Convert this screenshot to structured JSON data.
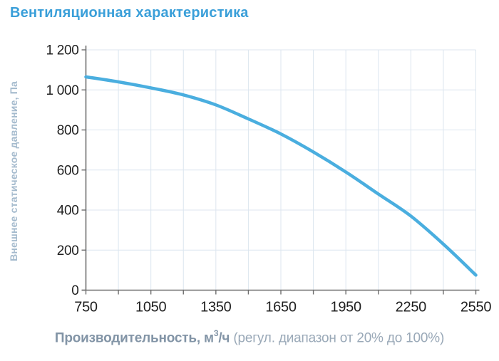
{
  "page": {
    "title": "Вентиляционная характеристика"
  },
  "colors": {
    "title": "#3A9FD9",
    "curve": "#4AAEDF",
    "grid": "#DCE6EF",
    "axis": "#6F6F6F",
    "tick_text": "#1F1F1F",
    "ylabel_text": "#A4BACD",
    "xlabel_bold": "#8294A6",
    "xlabel_regular": "#9AA9B8"
  },
  "axes": {
    "ylabel": "Внешнее статическое давление, Па",
    "xlabel": {
      "bold_prefix": "Производительность, м",
      "sup": "3",
      "bold_suffix": "/ч",
      "regular": " (регул. диапазон от 20% до 100%)"
    },
    "y_ticks": [
      {
        "value": 0,
        "label": "0"
      },
      {
        "value": 200,
        "label": "200"
      },
      {
        "value": 400,
        "label": "400"
      },
      {
        "value": 600,
        "label": "600"
      },
      {
        "value": 800,
        "label": "800"
      },
      {
        "value": 1000,
        "label": "1 000"
      },
      {
        "value": 1200,
        "label": "1 200"
      }
    ],
    "x_major_ticks": [
      {
        "value": 750,
        "label": "750"
      },
      {
        "value": 1050,
        "label": "1050"
      },
      {
        "value": 1350,
        "label": "1350"
      },
      {
        "value": 1650,
        "label": "1650"
      },
      {
        "value": 1950,
        "label": "1950"
      },
      {
        "value": 2250,
        "label": "2250"
      },
      {
        "value": 2550,
        "label": "2550"
      }
    ],
    "x_minor_step": 150
  },
  "chart_data": {
    "type": "line",
    "title": "Вентиляционная характеристика",
    "xlabel": "Производительность, м3/ч (регул. диапазон от 20% до 100%)",
    "ylabel": "Внешнее статическое давление, Па",
    "x": [
      750,
      900,
      1050,
      1200,
      1350,
      1500,
      1650,
      1800,
      1950,
      2100,
      2250,
      2400,
      2550
    ],
    "y": [
      1065,
      1040,
      1010,
      975,
      925,
      855,
      780,
      690,
      590,
      480,
      370,
      230,
      75
    ],
    "xlim": [
      750,
      2550
    ],
    "ylim": [
      0,
      1200
    ],
    "grid": true,
    "legend": false
  }
}
